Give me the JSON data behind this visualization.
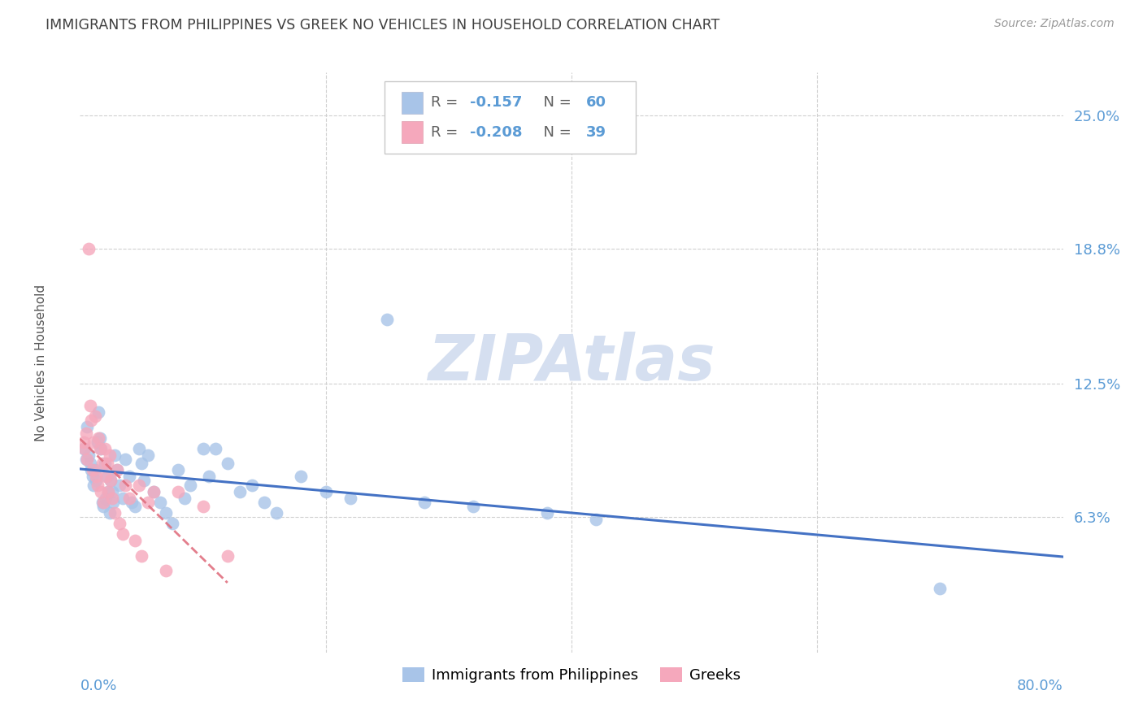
{
  "title": "IMMIGRANTS FROM PHILIPPINES VS GREEK NO VEHICLES IN HOUSEHOLD CORRELATION CHART",
  "source": "Source: ZipAtlas.com",
  "ylabel": "No Vehicles in Household",
  "ytick_labels": [
    "6.3%",
    "12.5%",
    "18.8%",
    "25.0%"
  ],
  "ytick_values": [
    6.3,
    12.5,
    18.8,
    25.0
  ],
  "xmin": 0.0,
  "xmax": 80.0,
  "ymin": 0.0,
  "ymax": 27.0,
  "legend_blue_R": "-0.157",
  "legend_blue_N": "60",
  "legend_pink_R": "-0.208",
  "legend_pink_N": "39",
  "blue_color": "#a8c4e8",
  "pink_color": "#f5a8bc",
  "blue_line_color": "#4472c4",
  "pink_line_color": "#e07080",
  "watermark_color": "#d5dff0",
  "axis_label_color": "#5b9bd5",
  "title_color": "#404040",
  "blue_points": [
    [
      0.3,
      9.5
    ],
    [
      0.5,
      9.0
    ],
    [
      0.6,
      10.5
    ],
    [
      0.7,
      9.2
    ],
    [
      0.8,
      8.8
    ],
    [
      0.9,
      8.5
    ],
    [
      1.0,
      8.2
    ],
    [
      1.1,
      7.8
    ],
    [
      1.2,
      8.5
    ],
    [
      1.3,
      8.0
    ],
    [
      1.4,
      9.8
    ],
    [
      1.5,
      11.2
    ],
    [
      1.6,
      10.0
    ],
    [
      1.7,
      9.5
    ],
    [
      1.8,
      7.0
    ],
    [
      1.9,
      6.8
    ],
    [
      2.0,
      8.8
    ],
    [
      2.1,
      7.2
    ],
    [
      2.2,
      8.2
    ],
    [
      2.3,
      7.5
    ],
    [
      2.4,
      6.5
    ],
    [
      2.5,
      8.0
    ],
    [
      2.6,
      7.5
    ],
    [
      2.7,
      7.0
    ],
    [
      2.8,
      9.2
    ],
    [
      3.0,
      8.5
    ],
    [
      3.2,
      7.8
    ],
    [
      3.5,
      7.2
    ],
    [
      3.7,
      9.0
    ],
    [
      4.0,
      8.2
    ],
    [
      4.2,
      7.0
    ],
    [
      4.5,
      6.8
    ],
    [
      4.8,
      9.5
    ],
    [
      5.0,
      8.8
    ],
    [
      5.2,
      8.0
    ],
    [
      5.5,
      9.2
    ],
    [
      6.0,
      7.5
    ],
    [
      6.5,
      7.0
    ],
    [
      7.0,
      6.5
    ],
    [
      7.5,
      6.0
    ],
    [
      8.0,
      8.5
    ],
    [
      8.5,
      7.2
    ],
    [
      9.0,
      7.8
    ],
    [
      10.0,
      9.5
    ],
    [
      10.5,
      8.2
    ],
    [
      11.0,
      9.5
    ],
    [
      12.0,
      8.8
    ],
    [
      13.0,
      7.5
    ],
    [
      14.0,
      7.8
    ],
    [
      15.0,
      7.0
    ],
    [
      16.0,
      6.5
    ],
    [
      18.0,
      8.2
    ],
    [
      20.0,
      7.5
    ],
    [
      22.0,
      7.2
    ],
    [
      25.0,
      15.5
    ],
    [
      28.0,
      7.0
    ],
    [
      32.0,
      6.8
    ],
    [
      38.0,
      6.5
    ],
    [
      42.0,
      6.2
    ],
    [
      70.0,
      3.0
    ]
  ],
  "pink_points": [
    [
      0.3,
      9.8
    ],
    [
      0.4,
      9.5
    ],
    [
      0.5,
      10.2
    ],
    [
      0.6,
      9.0
    ],
    [
      0.7,
      18.8
    ],
    [
      0.8,
      11.5
    ],
    [
      0.9,
      10.8
    ],
    [
      1.0,
      8.5
    ],
    [
      1.1,
      9.8
    ],
    [
      1.2,
      11.0
    ],
    [
      1.3,
      8.2
    ],
    [
      1.4,
      7.8
    ],
    [
      1.5,
      10.0
    ],
    [
      1.6,
      9.5
    ],
    [
      1.7,
      7.5
    ],
    [
      1.8,
      8.8
    ],
    [
      1.9,
      7.0
    ],
    [
      2.0,
      9.5
    ],
    [
      2.1,
      8.2
    ],
    [
      2.2,
      8.8
    ],
    [
      2.3,
      7.5
    ],
    [
      2.4,
      9.2
    ],
    [
      2.5,
      8.0
    ],
    [
      2.6,
      7.2
    ],
    [
      2.8,
      6.5
    ],
    [
      3.0,
      8.5
    ],
    [
      3.2,
      6.0
    ],
    [
      3.5,
      5.5
    ],
    [
      3.7,
      7.8
    ],
    [
      4.0,
      7.2
    ],
    [
      4.5,
      5.2
    ],
    [
      4.8,
      7.8
    ],
    [
      5.0,
      4.5
    ],
    [
      5.5,
      7.0
    ],
    [
      6.0,
      7.5
    ],
    [
      7.0,
      3.8
    ],
    [
      8.0,
      7.5
    ],
    [
      10.0,
      6.8
    ],
    [
      12.0,
      4.5
    ]
  ]
}
